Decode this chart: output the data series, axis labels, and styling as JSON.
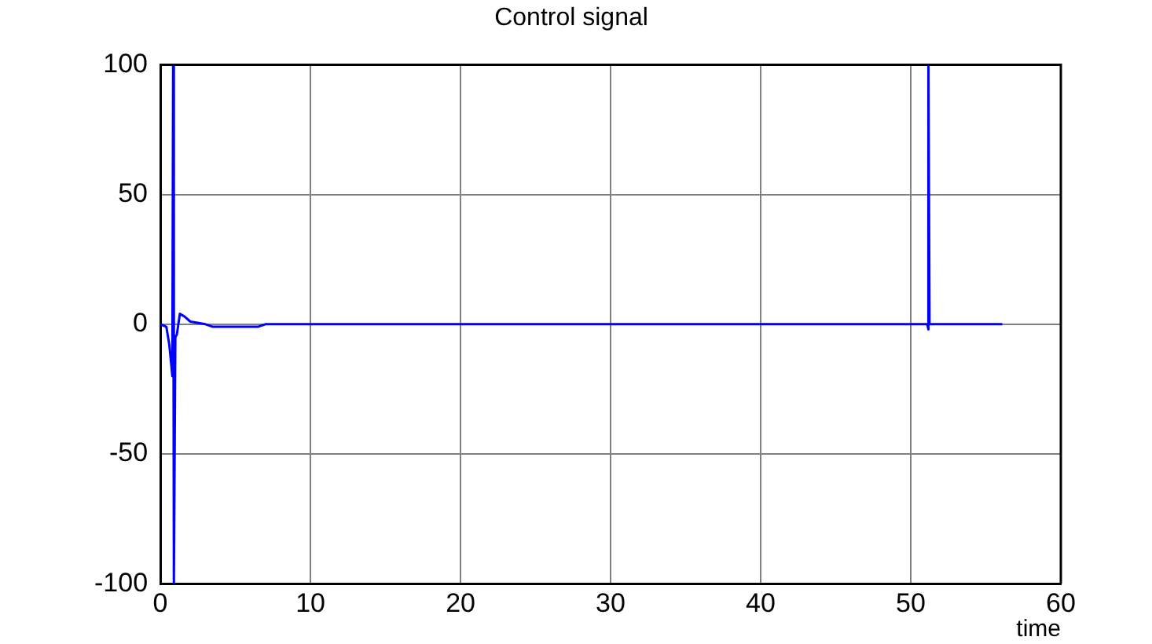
{
  "chart_data": {
    "type": "line",
    "title": "Control signal",
    "xlabel": "time",
    "series": [
      {
        "color": "#0000ff",
        "x": [
          0,
          0.4,
          0.6,
          0.8,
          0.85,
          0.9,
          1.0,
          1.1,
          1.3,
          1.6,
          2,
          3,
          3.5,
          6.5,
          7,
          51.1,
          51.15,
          51.2,
          51.25,
          56.1
        ],
        "values": [
          0,
          -1,
          -8,
          -20,
          100,
          -100,
          -5,
          -4,
          4,
          3,
          1,
          0,
          -1,
          -1,
          0,
          0,
          -2,
          100,
          0,
          0
        ]
      }
    ],
    "xlim": [
      0,
      60
    ],
    "xticks": [
      0,
      10,
      20,
      30,
      40,
      50,
      60
    ],
    "ylim": [
      -100,
      100
    ],
    "yticks": [
      -100,
      -50,
      0,
      50,
      100
    ],
    "grid": true,
    "marker": "none",
    "line_style": "solid",
    "legend": false
  }
}
